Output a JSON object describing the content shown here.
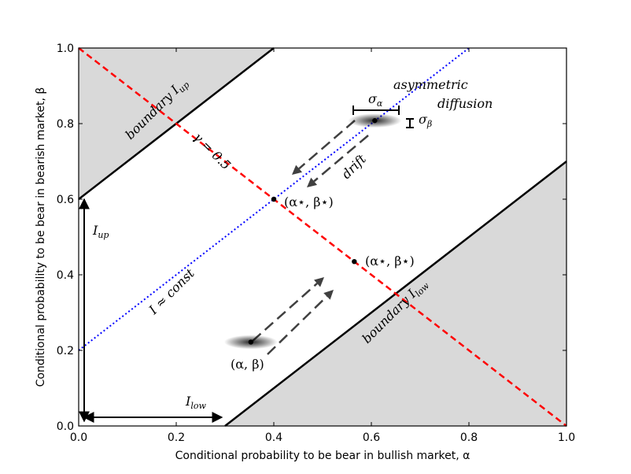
{
  "chart_data": {
    "type": "line",
    "title": "",
    "xlabel": "Conditional probability to be bear in bullish market, α",
    "ylabel": "Conditional probability to be bear in bearish market, β",
    "xlim": [
      0.0,
      1.0
    ],
    "ylim": [
      0.0,
      1.0
    ],
    "xticks": [
      "0.0",
      "0.2",
      "0.4",
      "0.6",
      "0.8",
      "1.0"
    ],
    "yticks": [
      "0.0",
      "0.2",
      "0.4",
      "0.6",
      "0.8",
      "1.0"
    ],
    "grid": false,
    "legend": "none",
    "colors": {
      "boundary_fill": "#d9d9d9",
      "gamma_line": "#ff0000",
      "const_line": "#0000ff",
      "drift_arrow": "#404040"
    },
    "series": [
      {
        "name": "boundary I_up",
        "style": "solid",
        "x": [
          0.0,
          0.4
        ],
        "y": [
          0.6,
          1.0
        ]
      },
      {
        "name": "boundary I_low",
        "style": "solid",
        "x": [
          0.3,
          1.0
        ],
        "y": [
          0.0,
          0.7
        ]
      },
      {
        "name": "γ = 0.5",
        "style": "dashed",
        "x": [
          0.0,
          1.0
        ],
        "y": [
          1.0,
          0.0
        ]
      },
      {
        "name": "I ≈ const",
        "style": "dotted",
        "x": [
          0.0,
          0.8
        ],
        "y": [
          0.2,
          1.0
        ]
      }
    ],
    "points": [
      {
        "label": "(α,β)",
        "x": 0.353,
        "y": 0.222
      },
      {
        "label": "(α*,β*)",
        "x": 0.4,
        "y": 0.6
      },
      {
        "label": "(α*,β*)",
        "x": 0.565,
        "y": 0.435
      },
      {
        "label": "",
        "x": 0.607,
        "y": 0.808
      }
    ],
    "annotations": {
      "boundary_up": {
        "prefix": "boundary I",
        "sub": "up"
      },
      "boundary_low": {
        "prefix": "boundary I",
        "sub": "low"
      },
      "gamma": "γ = 0.5",
      "const": "I ≈ const",
      "I_up": {
        "prefix": "I",
        "sub": "up"
      },
      "I_low": {
        "prefix": "I",
        "sub": "low"
      },
      "sigma_alpha": {
        "prefix": "σ",
        "sub": "α"
      },
      "sigma_beta": {
        "prefix": "σ",
        "sub": "β"
      },
      "asymmetric": "asymmetric",
      "diffusion": "diffusion",
      "drift": "drift",
      "point_start": "(α, β)",
      "point_upper": "(α⋆, β⋆)",
      "point_lower": "(α⋆, β⋆)"
    }
  }
}
